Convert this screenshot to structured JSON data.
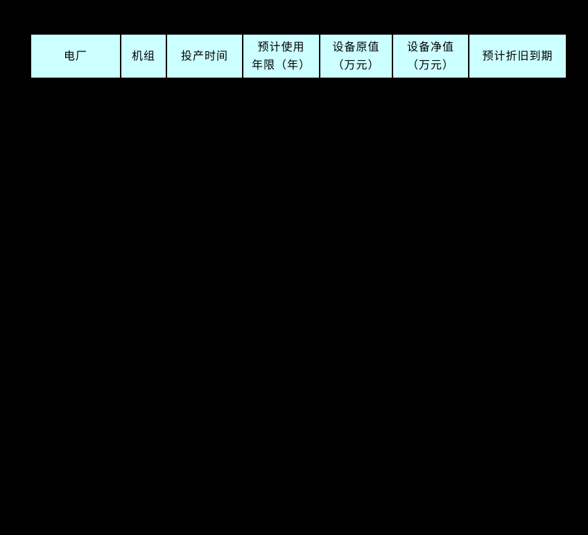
{
  "table": {
    "columns": [
      {
        "label": "电厂"
      },
      {
        "label": "机组"
      },
      {
        "label": "投产时间"
      },
      {
        "label": "预计使用\n年限（年）"
      },
      {
        "label": "设备原值\n（万元）"
      },
      {
        "label": "设备净值\n（万元）"
      },
      {
        "label": "预计折旧到期"
      }
    ],
    "colors": {
      "header_bg": "#ccffff",
      "border": "#000000",
      "page_bg": "#000000",
      "text": "#000000"
    }
  }
}
